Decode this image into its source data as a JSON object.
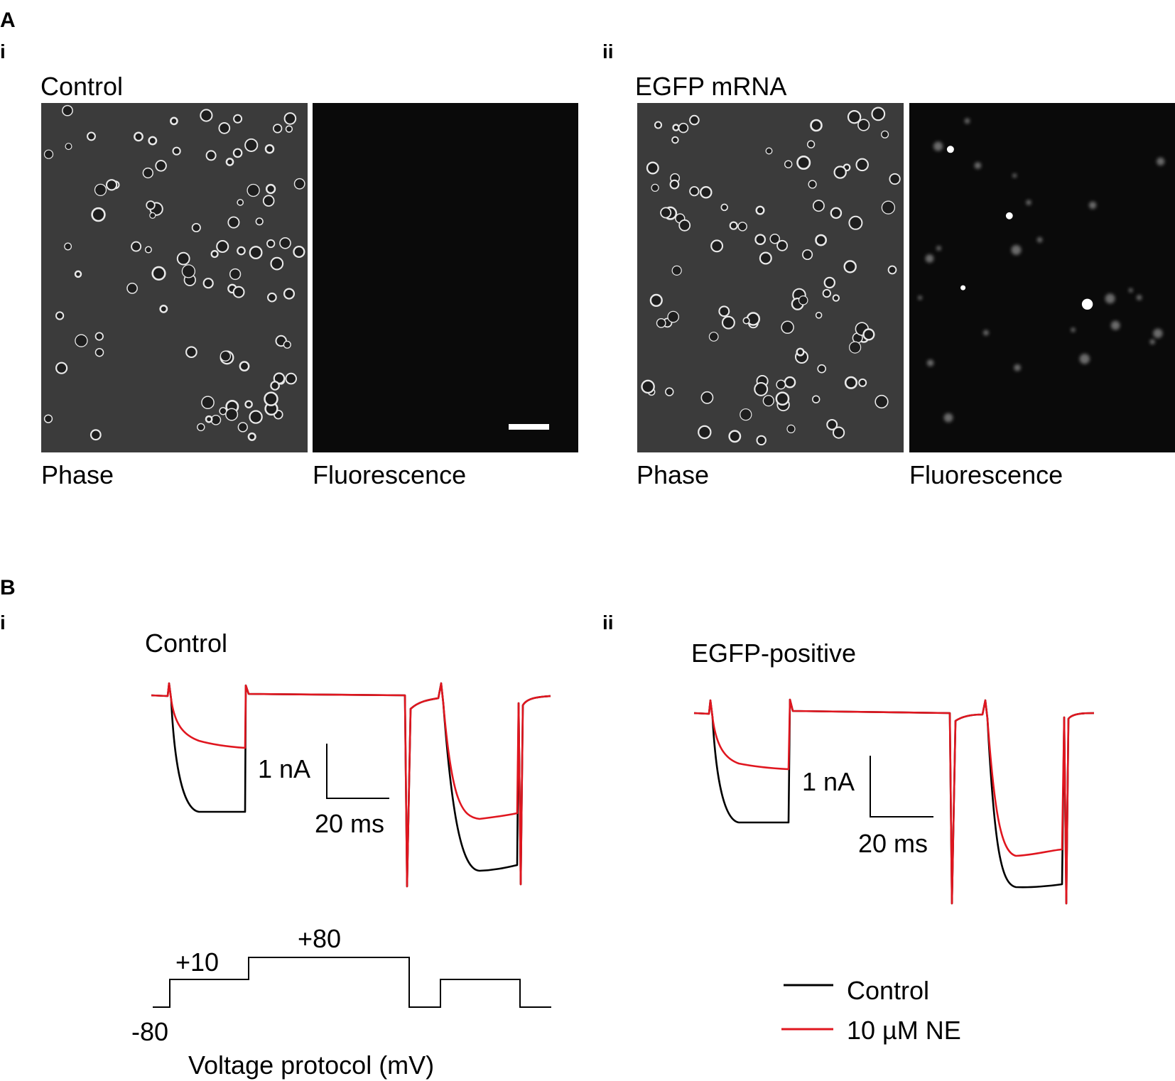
{
  "panel_a": {
    "letter": "A",
    "sub_i": "i",
    "sub_ii": "ii",
    "control_title": "Control",
    "egfp_title": "EGFP mRNA",
    "phase_label": "Phase",
    "fluorescence_label": "Fluorescence"
  },
  "panel_b": {
    "letter": "B",
    "sub_i": "i",
    "sub_ii": "ii",
    "control_title": "Control",
    "egfp_title": "EGFP-positive",
    "scale_current": "1 nA",
    "scale_time": "20 ms",
    "protocol": {
      "v_plus10": "+10",
      "v_plus80": "+80",
      "v_minus80": "-80",
      "caption": "Voltage protocol (mV)"
    },
    "legend": [
      {
        "label": "Control",
        "color": "#000000"
      },
      {
        "label": "10 µM NE",
        "color": "#e0161f"
      }
    ]
  },
  "colors": {
    "control": "#000000",
    "ne": "#e0161f",
    "fluor_bg": "#0a0a0a",
    "phase_bg": "#3b3b3b"
  },
  "chart_data": [
    {
      "type": "line",
      "title": "Control",
      "series": [
        {
          "name": "Control",
          "color": "#000000"
        },
        {
          "name": "10 µM NE",
          "color": "#e0161f"
        }
      ],
      "scale_bars": {
        "current": "1 nA",
        "time": "20 ms"
      }
    },
    {
      "type": "line",
      "title": "EGFP-positive",
      "series": [
        {
          "name": "Control",
          "color": "#000000"
        },
        {
          "name": "10 µM NE",
          "color": "#e0161f"
        }
      ],
      "scale_bars": {
        "current": "1 nA",
        "time": "20 ms"
      }
    },
    {
      "type": "line",
      "title": "Voltage protocol (mV)",
      "step_levels_mV": [
        "-80",
        "+10",
        "+80"
      ]
    }
  ]
}
